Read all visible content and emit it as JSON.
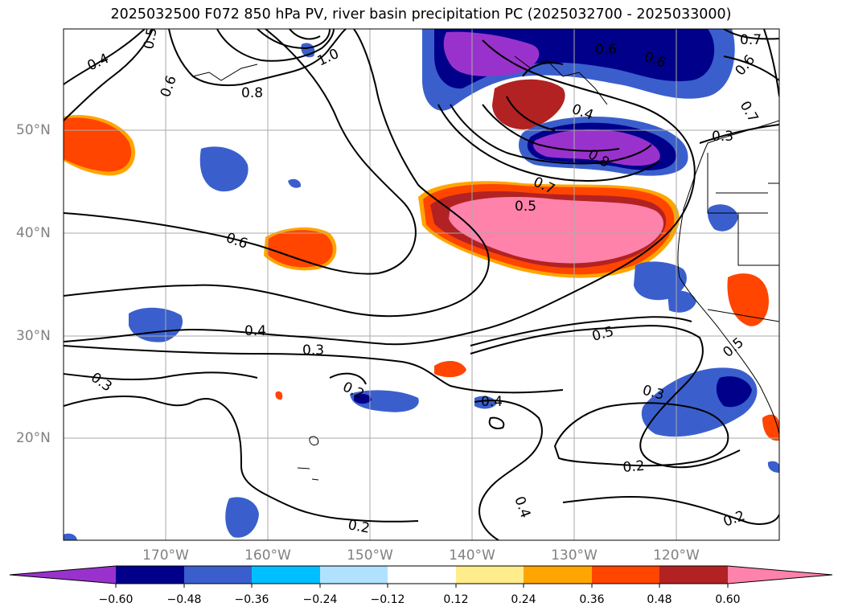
{
  "title": "2025032500 F072 850 hPa PV, river basin precipitation PC (2025032700 - 2025033000)",
  "lat_labels": [
    "50°N",
    "40°N",
    "30°N",
    "20°N"
  ],
  "lon_labels": [
    "170°W",
    "160°W",
    "150°W",
    "140°W",
    "130°W",
    "120°W"
  ],
  "colorbar": {
    "ticks": [
      "−0.60",
      "−0.48",
      "−0.36",
      "−0.24",
      "−0.12",
      "0.12",
      "0.24",
      "0.36",
      "0.48",
      "0.60"
    ],
    "levels": [
      -0.6,
      -0.48,
      -0.36,
      -0.24,
      -0.12,
      0.12,
      0.24,
      0.36,
      0.48,
      0.6
    ],
    "colors": [
      "#9932cc",
      "#00008b",
      "#3a5fcd",
      "#00bfff",
      "#b0e2ff",
      "#ffffff",
      "#ffec8b",
      "#ffa500",
      "#ff4500",
      "#b22222",
      "#ff82ab"
    ],
    "extend": "both"
  },
  "contour_labels": [
    "0.4",
    "0.5",
    "0.6",
    "0.8",
    "1.0",
    "0.7",
    "0.6",
    "0.6",
    "0.7",
    "0.6",
    "0.4",
    "0.8",
    "0.7",
    "0.3",
    "0.5",
    "0.6",
    "0.4",
    "0.3",
    "0.3",
    "0.5",
    "0.2",
    "0.4",
    "0.3",
    "0.2",
    "0.4",
    "0.2",
    "0.2",
    "0.5"
  ],
  "grid": true,
  "map_extent": {
    "lon": [
      -180,
      -110
    ],
    "lat": [
      10,
      60
    ]
  }
}
